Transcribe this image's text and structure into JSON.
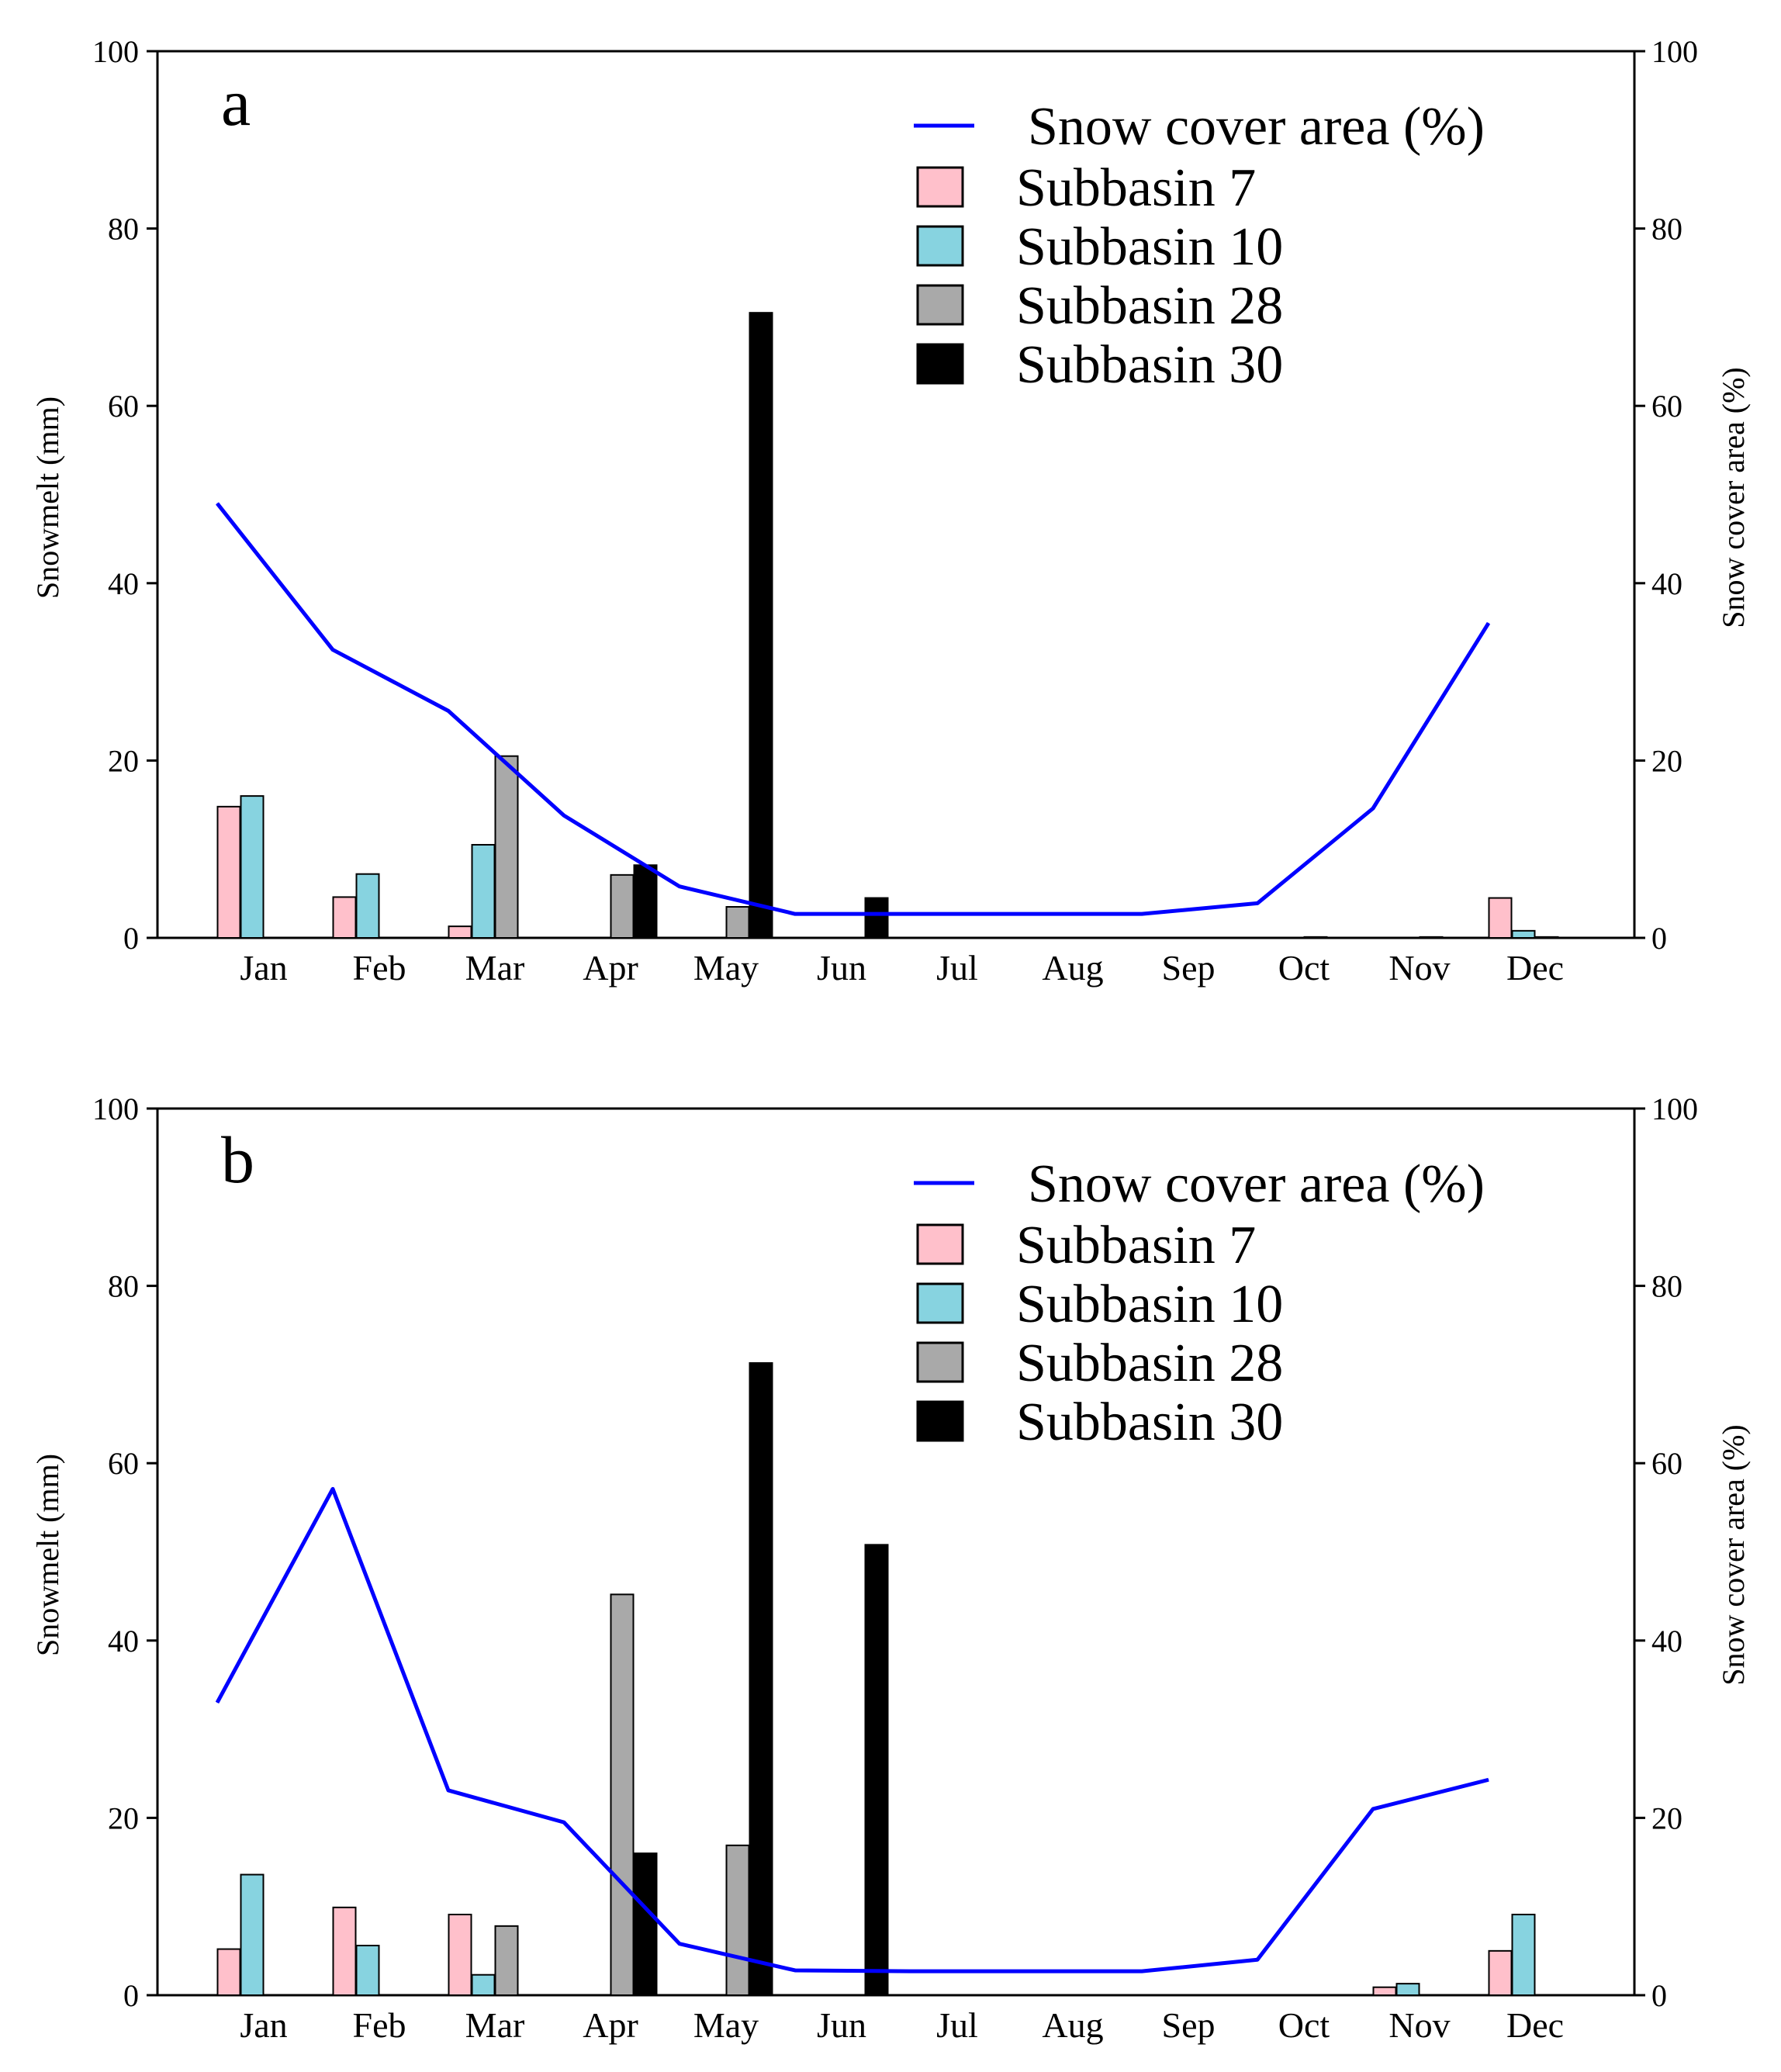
{
  "chart_data": [
    {
      "type": "bar",
      "panel_label": "a",
      "categories": [
        "Jan",
        "Feb",
        "Mar",
        "Apr",
        "May",
        "Jun",
        "Jul",
        "Aug",
        "Sep",
        "Oct",
        "Nov",
        "Dec"
      ],
      "ylabel": "Snowmelt (mm)",
      "y2label": "Snow cover area (%)",
      "ylim": [
        0,
        100
      ],
      "y2lim": [
        0,
        100
      ],
      "yticks": [
        "0",
        "20",
        "40",
        "60",
        "80",
        "100"
      ],
      "legend_position": "top-right",
      "series": [
        {
          "name": "Subbasin 7",
          "kind": "bar",
          "color": "#ffc0cb",
          "values": [
            14.8,
            4.6,
            1.3,
            0,
            0,
            0,
            0,
            0,
            0,
            0,
            0,
            4.5
          ]
        },
        {
          "name": "Subbasin 10",
          "kind": "bar",
          "color": "#87d3e0",
          "values": [
            16,
            7.2,
            10.5,
            0,
            0,
            0,
            0,
            0,
            0,
            0,
            0,
            0.8
          ]
        },
        {
          "name": "Subbasin 28",
          "kind": "bar",
          "color": "#a9a9a9",
          "values": [
            0,
            0,
            20.5,
            7.1,
            3.5,
            0,
            0,
            0,
            0,
            0.1,
            0.1,
            0.1
          ]
        },
        {
          "name": "Subbasin 30",
          "kind": "bar",
          "color": "#000000",
          "values": [
            0,
            0,
            0,
            8.2,
            70.5,
            4.5,
            0,
            0,
            0,
            0,
            0,
            0
          ]
        },
        {
          "name": "Snow cover area (%)",
          "kind": "line",
          "axis": "right",
          "color": "#0000ff",
          "values": [
            49,
            32.5,
            25.6,
            13.8,
            5.8,
            2.7,
            2.7,
            2.7,
            2.7,
            3.9,
            14.6,
            35.5
          ]
        }
      ]
    },
    {
      "type": "bar",
      "panel_label": "b",
      "categories": [
        "Jan",
        "Feb",
        "Mar",
        "Apr",
        "May",
        "Jun",
        "Jul",
        "Aug",
        "Sep",
        "Oct",
        "Nov",
        "Dec"
      ],
      "ylabel": "Snowmelt (mm)",
      "y2label": "Snow cover area (%)",
      "ylim": [
        0,
        100
      ],
      "y2lim": [
        0,
        100
      ],
      "yticks": [
        "0",
        "20",
        "40",
        "60",
        "80",
        "100"
      ],
      "legend_position": "top-right",
      "series": [
        {
          "name": "Subbasin 7",
          "kind": "bar",
          "color": "#ffc0cb",
          "values": [
            5.2,
            9.9,
            9.1,
            0,
            0,
            0,
            0,
            0,
            0,
            0,
            0.9,
            5
          ]
        },
        {
          "name": "Subbasin 10",
          "kind": "bar",
          "color": "#87d3e0",
          "values": [
            13.6,
            5.6,
            2.3,
            0,
            0,
            0,
            0,
            0,
            0,
            0,
            1.3,
            9.1
          ]
        },
        {
          "name": "Subbasin 28",
          "kind": "bar",
          "color": "#a9a9a9",
          "values": [
            0,
            0,
            7.8,
            45.2,
            16.9,
            0,
            0,
            0,
            0,
            0,
            0,
            0
          ]
        },
        {
          "name": "Subbasin 30",
          "kind": "bar",
          "color": "#000000",
          "values": [
            0,
            0,
            0,
            16,
            71.3,
            50.8,
            0,
            0,
            0,
            0,
            0,
            0
          ]
        },
        {
          "name": "Snow cover area (%)",
          "kind": "line",
          "axis": "right",
          "color": "#0000ff",
          "values": [
            33,
            57.1,
            23.1,
            19.5,
            5.8,
            2.8,
            2.7,
            2.7,
            2.7,
            4,
            21,
            24.3
          ]
        }
      ]
    }
  ]
}
